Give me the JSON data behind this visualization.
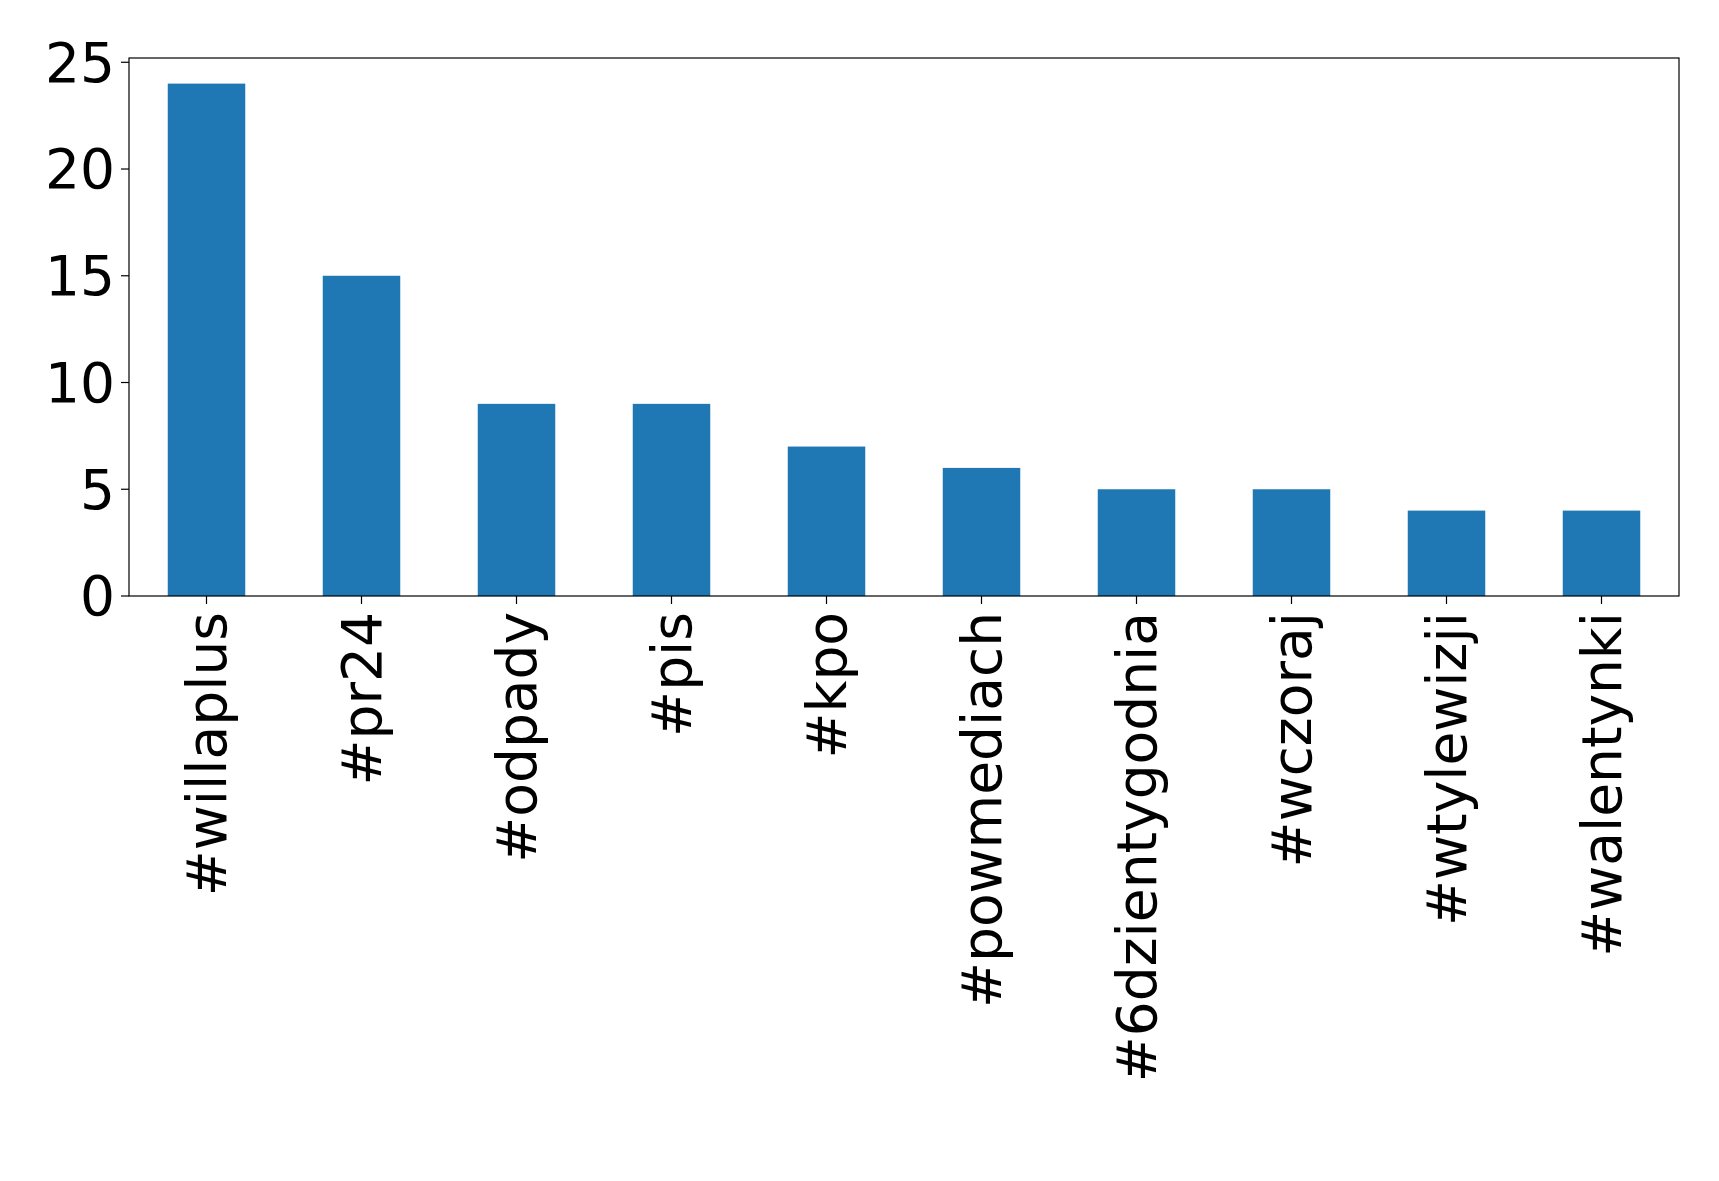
{
  "chart_data": {
    "type": "bar",
    "categories": [
      "#willaplus",
      "#pr24",
      "#odpady",
      "#pis",
      "#kpo",
      "#powmediach",
      "#6dzientygodnia",
      "#wczoraj",
      "#wtylewizji",
      "#walentynki"
    ],
    "values": [
      24,
      15,
      9,
      9,
      7,
      6,
      5,
      5,
      4,
      4
    ],
    "color": "#1f77b4",
    "ylim": [
      0,
      25.2
    ],
    "yticks": [
      0,
      5,
      10,
      15,
      20,
      25
    ],
    "grid": false
  }
}
